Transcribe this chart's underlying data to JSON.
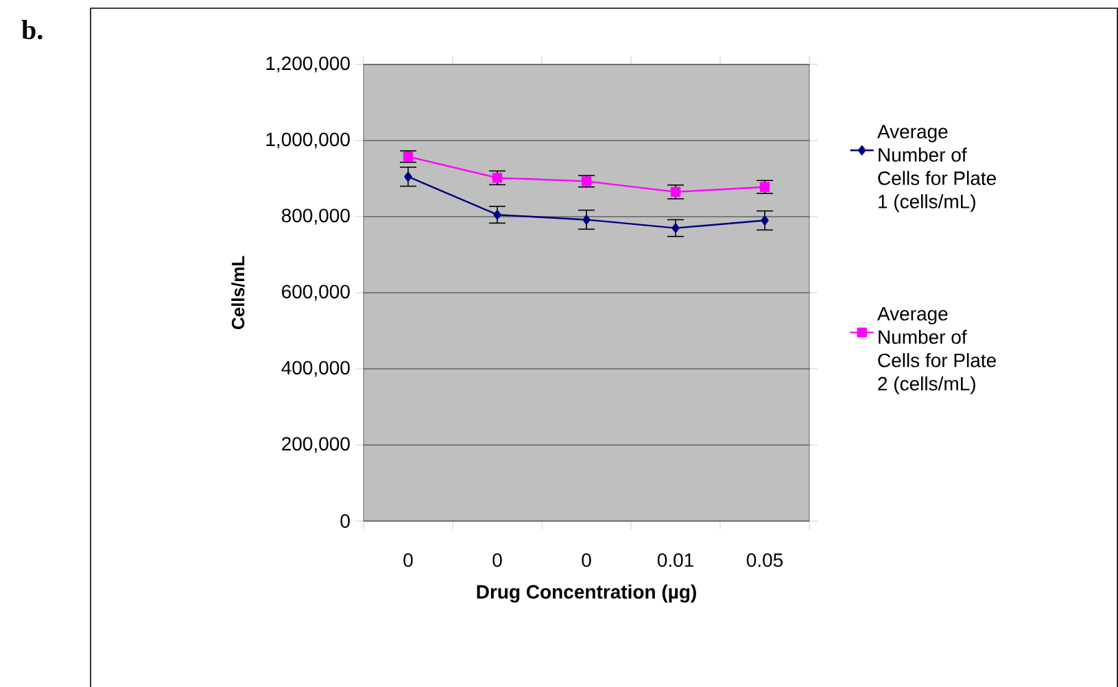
{
  "chart_data": {
    "type": "line",
    "annotations": [
      "b."
    ],
    "xlabel": "Drug Concentration (µg)",
    "ylabel": "Cells/mL",
    "categories": [
      "0",
      "0",
      "0",
      "0.01",
      "0.05"
    ],
    "ylim": [
      0,
      1200000
    ],
    "yticks": [
      {
        "value": 0,
        "label": "0"
      },
      {
        "value": 200000,
        "label": "200,000"
      },
      {
        "value": 400000,
        "label": "400,000"
      },
      {
        "value": 600000,
        "label": "600,000"
      },
      {
        "value": 800000,
        "label": "800,000"
      },
      {
        "value": 1000000,
        "label": "1,000,000"
      },
      {
        "value": 1200000,
        "label": "1,200,000"
      }
    ],
    "grid": "y",
    "legend": "right",
    "series": [
      {
        "name": "Average Number of Cells for Plate 1 (cells/mL)",
        "color": "#000080",
        "marker": "diamond",
        "values": [
          905000,
          805000,
          792000,
          770000,
          790000
        ],
        "errors": [
          25000,
          22000,
          25000,
          22000,
          25000
        ]
      },
      {
        "name": "Average Number of Cells for Plate 2 (cells/mL)",
        "color": "#ff00ff",
        "marker": "square",
        "values": [
          958000,
          902000,
          893000,
          865000,
          878000
        ],
        "errors": [
          15000,
          18000,
          15000,
          18000,
          17000
        ]
      }
    ]
  }
}
